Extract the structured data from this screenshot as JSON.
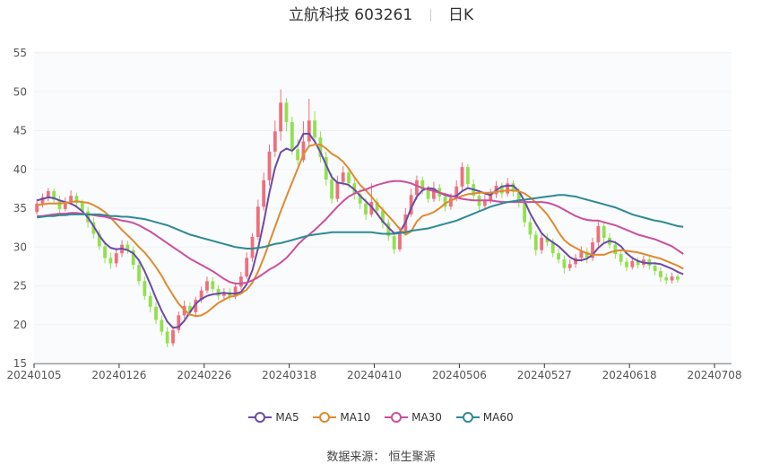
{
  "header": {
    "stock_title": "立航科技 603261",
    "period": "日K"
  },
  "source_label": "数据来源：",
  "source_value": "恒生聚源",
  "colors": {
    "up": "#ee6f7c",
    "down": "#91e04f",
    "MA5": "#6b4aa8",
    "MA10": "#e08a2e",
    "MA30": "#cc4f9a",
    "MA60": "#2f8a93"
  },
  "chart_data": {
    "type": "candlestick",
    "ylim": [
      15,
      55
    ],
    "yticks": [
      15,
      20,
      25,
      30,
      35,
      40,
      45,
      50,
      55
    ],
    "xlim": [
      0,
      123
    ],
    "x_tick_labels": [
      "20240105",
      "20240126",
      "20240226",
      "20240318",
      "20240410",
      "20240506",
      "20240527",
      "20240618",
      "20240708"
    ],
    "x_tick_index": [
      0,
      15,
      30,
      45,
      60,
      75,
      90,
      105,
      120
    ],
    "candles": [
      [
        34.5,
        35.6,
        36.2,
        34.2
      ],
      [
        35.6,
        36.4,
        36.9,
        35.1
      ],
      [
        36.4,
        37.2,
        37.6,
        35.9
      ],
      [
        37.2,
        36.1,
        37.5,
        35.6
      ],
      [
        36.1,
        34.9,
        36.6,
        34.4
      ],
      [
        34.9,
        35.8,
        36.4,
        34.6
      ],
      [
        35.8,
        36.6,
        37.3,
        35.4
      ],
      [
        36.6,
        35.7,
        37.0,
        35.2
      ],
      [
        35.7,
        34.6,
        36.1,
        34.1
      ],
      [
        34.6,
        33.2,
        35.2,
        32.5
      ],
      [
        33.2,
        31.7,
        33.8,
        31.1
      ],
      [
        31.7,
        30.1,
        32.2,
        29.6
      ],
      [
        30.1,
        28.6,
        30.7,
        27.9
      ],
      [
        28.6,
        27.9,
        29.3,
        27.2
      ],
      [
        27.9,
        29.2,
        29.9,
        27.4
      ],
      [
        29.2,
        30.3,
        30.9,
        28.7
      ],
      [
        30.3,
        29.6,
        30.8,
        29.1
      ],
      [
        29.6,
        27.7,
        30.1,
        27.1
      ],
      [
        27.7,
        25.6,
        28.1,
        25.1
      ],
      [
        25.6,
        23.7,
        26.2,
        23.2
      ],
      [
        23.7,
        22.3,
        24.2,
        21.6
      ],
      [
        22.3,
        20.6,
        22.9,
        20.1
      ],
      [
        20.6,
        19.1,
        21.2,
        18.6
      ],
      [
        19.1,
        17.6,
        19.7,
        17.1
      ],
      [
        17.6,
        19.3,
        19.8,
        17.2
      ],
      [
        19.3,
        21.2,
        21.7,
        18.9
      ],
      [
        21.2,
        22.4,
        23.1,
        20.8
      ],
      [
        22.4,
        21.6,
        22.9,
        21.1
      ],
      [
        21.6,
        23.2,
        23.6,
        21.2
      ],
      [
        23.2,
        24.4,
        24.9,
        22.8
      ],
      [
        24.4,
        25.6,
        26.2,
        24.0
      ],
      [
        25.6,
        24.6,
        26.1,
        24.1
      ],
      [
        24.6,
        23.7,
        25.1,
        23.2
      ],
      [
        23.7,
        24.2,
        24.7,
        23.1
      ],
      [
        24.2,
        23.6,
        24.7,
        23.1
      ],
      [
        23.6,
        24.9,
        25.4,
        23.3
      ],
      [
        24.9,
        26.2,
        26.8,
        24.5
      ],
      [
        26.2,
        28.6,
        29.3,
        25.9
      ],
      [
        28.6,
        31.3,
        31.8,
        28.1
      ],
      [
        31.3,
        35.2,
        36.1,
        30.9
      ],
      [
        35.2,
        38.6,
        39.6,
        34.7
      ],
      [
        38.6,
        42.3,
        43.2,
        37.9
      ],
      [
        42.3,
        44.9,
        46.3,
        41.6
      ],
      [
        44.9,
        48.6,
        50.3,
        43.7
      ],
      [
        48.6,
        46.1,
        49.2,
        44.9
      ],
      [
        46.1,
        42.6,
        46.8,
        41.9
      ],
      [
        42.6,
        41.2,
        43.9,
        40.6
      ],
      [
        41.2,
        43.6,
        46.2,
        40.9
      ],
      [
        43.6,
        46.3,
        49.1,
        42.8
      ],
      [
        46.3,
        44.1,
        47.5,
        43.3
      ],
      [
        44.1,
        41.6,
        44.9,
        40.9
      ],
      [
        41.6,
        38.7,
        42.3,
        37.9
      ],
      [
        38.7,
        36.2,
        39.5,
        35.6
      ],
      [
        36.2,
        38.4,
        39.2,
        35.8
      ],
      [
        38.4,
        39.6,
        40.4,
        37.9
      ],
      [
        39.6,
        38.2,
        40.2,
        37.6
      ],
      [
        38.2,
        36.8,
        38.9,
        36.1
      ],
      [
        36.8,
        35.6,
        37.5,
        34.9
      ],
      [
        35.6,
        34.2,
        36.3,
        33.5
      ],
      [
        34.2,
        35.8,
        38.2,
        33.9
      ],
      [
        35.8,
        34.7,
        36.3,
        34.1
      ],
      [
        34.7,
        33.1,
        35.2,
        32.4
      ],
      [
        33.1,
        31.4,
        33.6,
        30.8
      ],
      [
        31.4,
        29.7,
        31.9,
        29.1
      ],
      [
        29.7,
        31.8,
        32.6,
        29.4
      ],
      [
        31.8,
        34.2,
        35.0,
        31.5
      ],
      [
        34.2,
        36.7,
        37.5,
        33.9
      ],
      [
        36.7,
        38.6,
        39.2,
        36.1
      ],
      [
        38.6,
        37.4,
        39.1,
        36.8
      ],
      [
        37.4,
        36.2,
        37.9,
        35.7
      ],
      [
        36.2,
        37.6,
        38.4,
        35.8
      ],
      [
        37.6,
        36.5,
        38.1,
        35.9
      ],
      [
        36.5,
        35.2,
        37.0,
        34.6
      ],
      [
        35.2,
        36.3,
        36.9,
        34.8
      ],
      [
        36.3,
        37.8,
        38.6,
        35.9
      ],
      [
        37.8,
        40.3,
        40.9,
        37.3
      ],
      [
        40.3,
        38.1,
        40.7,
        37.6
      ],
      [
        38.1,
        36.6,
        38.7,
        36.0
      ],
      [
        36.6,
        35.3,
        37.2,
        34.7
      ],
      [
        35.3,
        36.1,
        36.7,
        34.8
      ],
      [
        36.1,
        36.8,
        37.5,
        35.6
      ],
      [
        36.8,
        37.9,
        38.5,
        36.3
      ],
      [
        37.9,
        36.9,
        38.3,
        36.3
      ],
      [
        36.9,
        38.2,
        38.9,
        36.5
      ],
      [
        38.2,
        37.1,
        38.6,
        36.5
      ],
      [
        37.1,
        35.7,
        37.6,
        35.1
      ],
      [
        35.7,
        33.2,
        36.1,
        32.6
      ],
      [
        33.2,
        31.6,
        33.8,
        31.0
      ],
      [
        31.6,
        29.6,
        32.1,
        28.9
      ],
      [
        29.6,
        31.2,
        31.9,
        29.1
      ],
      [
        31.2,
        30.6,
        31.8,
        30.1
      ],
      [
        30.6,
        29.2,
        31.1,
        28.7
      ],
      [
        29.2,
        28.4,
        29.8,
        27.9
      ],
      [
        28.4,
        27.3,
        28.9,
        26.6
      ],
      [
        27.3,
        27.8,
        28.4,
        26.9
      ],
      [
        27.8,
        28.6,
        29.1,
        27.3
      ],
      [
        28.6,
        29.4,
        30.1,
        28.1
      ],
      [
        29.4,
        28.6,
        29.9,
        27.9
      ],
      [
        28.6,
        30.6,
        31.2,
        28.2
      ],
      [
        30.6,
        32.7,
        33.3,
        30.1
      ],
      [
        32.7,
        31.2,
        33.1,
        30.6
      ],
      [
        31.2,
        30.3,
        31.8,
        29.8
      ],
      [
        30.3,
        29.1,
        30.8,
        28.5
      ],
      [
        29.1,
        28.1,
        29.6,
        27.6
      ],
      [
        28.1,
        27.4,
        28.6,
        26.9
      ],
      [
        27.4,
        28.2,
        28.8,
        27.1
      ],
      [
        28.2,
        27.7,
        28.7,
        27.2
      ],
      [
        27.7,
        28.4,
        28.9,
        27.3
      ],
      [
        28.4,
        27.6,
        28.9,
        27.1
      ],
      [
        27.6,
        26.9,
        28.1,
        26.4
      ],
      [
        26.9,
        26.1,
        27.4,
        25.5
      ],
      [
        26.1,
        25.7,
        26.6,
        25.2
      ],
      [
        25.7,
        26.2,
        26.7,
        25.3
      ],
      [
        26.2,
        25.8,
        26.5,
        25.4
      ]
    ],
    "series": [
      {
        "name": "MA5",
        "values": [
          36.0,
          36.2,
          36.4,
          36.3,
          36.0,
          35.8,
          35.6,
          35.2,
          34.6,
          33.8,
          32.7,
          31.5,
          30.5,
          29.9,
          29.7,
          29.8,
          29.6,
          29.2,
          28.3,
          26.9,
          25.2,
          23.4,
          21.8,
          20.4,
          19.6,
          19.7,
          20.5,
          21.6,
          22.7,
          23.3,
          23.7,
          23.9,
          24.0,
          24.1,
          24.0,
          24.0,
          24.2,
          25.2,
          27.0,
          29.8,
          33.2,
          37.0,
          40.2,
          42.2,
          42.7,
          42.4,
          43.1,
          44.6,
          44.6,
          43.6,
          42.2,
          40.6,
          39.0,
          38.3,
          38.2,
          38.0,
          37.4,
          36.6,
          35.9,
          35.2,
          34.3,
          33.3,
          32.5,
          31.8,
          31.9,
          33.2,
          35.0,
          36.5,
          37.3,
          37.6,
          37.5,
          37.0,
          36.7,
          36.5,
          36.6,
          37.2,
          37.6,
          37.4,
          37.2,
          36.9,
          36.7,
          37.3,
          37.8,
          37.9,
          37.9,
          37.2,
          35.9,
          34.3,
          33.0,
          31.8,
          31.1,
          30.6,
          30.1,
          29.4,
          28.7,
          28.3,
          28.3,
          28.5,
          29.0,
          29.9,
          30.5,
          30.8,
          30.6,
          30.1,
          29.2,
          28.6,
          28.2,
          28.0,
          27.9,
          27.9,
          27.8,
          27.5,
          27.2,
          26.8,
          26.5
        ]
      },
      {
        "name": "MA10",
        "values": [
          35.4,
          35.5,
          35.6,
          35.6,
          35.6,
          35.7,
          35.8,
          35.9,
          35.8,
          35.7,
          35.4,
          35.0,
          34.5,
          33.8,
          33.0,
          32.2,
          31.5,
          30.8,
          30.0,
          29.3,
          28.4,
          27.4,
          26.3,
          25.0,
          23.8,
          22.7,
          21.9,
          21.3,
          21.1,
          21.2,
          21.6,
          22.2,
          22.8,
          23.2,
          23.6,
          23.7,
          24.0,
          24.5,
          25.4,
          26.8,
          28.6,
          30.6,
          32.6,
          34.6,
          36.5,
          38.3,
          40.1,
          41.9,
          43.0,
          43.2,
          43.2,
          42.7,
          42.0,
          41.6,
          41.0,
          40.1,
          39.0,
          38.0,
          37.3,
          36.5,
          35.6,
          34.8,
          34.0,
          33.2,
          32.3,
          31.6,
          32.0,
          33.3,
          34.0,
          34.2,
          34.5,
          35.0,
          35.6,
          36.0,
          36.3,
          36.6,
          36.8,
          36.9,
          37.0,
          37.0,
          37.0,
          37.1,
          37.2,
          37.3,
          37.3,
          37.2,
          36.9,
          36.4,
          35.7,
          35.0,
          34.2,
          33.1,
          31.9,
          30.9,
          30.3,
          29.9,
          29.5,
          29.2,
          29.0,
          29.0,
          29.0,
          29.3,
          29.5,
          29.6,
          29.5,
          29.4,
          29.3,
          29.1,
          28.9,
          28.7,
          28.5,
          28.2,
          27.9,
          27.6,
          27.2
        ]
      },
      {
        "name": "MA30",
        "values": [
          34.0,
          34.0,
          34.1,
          34.2,
          34.3,
          34.3,
          34.4,
          34.4,
          34.3,
          34.2,
          34.1,
          34.0,
          33.9,
          33.7,
          33.6,
          33.4,
          33.3,
          33.1,
          32.8,
          32.4,
          32.0,
          31.5,
          31.0,
          30.5,
          30.0,
          29.5,
          29.0,
          28.5,
          28.1,
          27.7,
          27.3,
          26.9,
          26.4,
          25.9,
          25.5,
          25.3,
          25.3,
          25.4,
          25.7,
          26.1,
          26.6,
          27.1,
          27.5,
          28.0,
          28.6,
          29.4,
          30.3,
          31.0,
          31.6,
          32.2,
          32.9,
          33.6,
          34.4,
          35.2,
          35.9,
          36.5,
          36.9,
          37.2,
          37.4,
          37.7,
          38.0,
          38.2,
          38.4,
          38.5,
          38.5,
          38.4,
          38.2,
          37.9,
          37.6,
          37.4,
          37.2,
          37.0,
          36.8,
          36.6,
          36.4,
          36.2,
          36.1,
          36.0,
          36.0,
          36.0,
          36.0,
          35.9,
          35.8,
          35.8,
          35.8,
          35.8,
          35.8,
          35.8,
          35.8,
          35.8,
          35.7,
          35.5,
          35.2,
          34.8,
          34.4,
          34.0,
          33.7,
          33.5,
          33.4,
          33.4,
          33.2,
          33.0,
          32.8,
          32.5,
          32.2,
          31.9,
          31.6,
          31.4,
          31.2,
          31.0,
          30.7,
          30.4,
          30.1,
          29.6,
          29.1
        ]
      },
      {
        "name": "MA60",
        "values": [
          33.8,
          33.9,
          34.0,
          34.0,
          34.1,
          34.1,
          34.2,
          34.2,
          34.2,
          34.2,
          34.2,
          34.2,
          34.1,
          34.0,
          34.0,
          33.9,
          33.9,
          33.8,
          33.7,
          33.6,
          33.4,
          33.2,
          33.0,
          32.8,
          32.5,
          32.2,
          31.9,
          31.6,
          31.4,
          31.2,
          31.0,
          30.8,
          30.6,
          30.4,
          30.2,
          30.0,
          29.9,
          29.8,
          29.8,
          29.9,
          30.0,
          30.2,
          30.4,
          30.5,
          30.7,
          30.9,
          31.1,
          31.3,
          31.5,
          31.6,
          31.7,
          31.8,
          31.9,
          31.9,
          31.9,
          31.9,
          31.9,
          31.9,
          31.9,
          31.9,
          31.8,
          31.7,
          31.7,
          31.7,
          31.8,
          31.9,
          32.1,
          32.2,
          32.3,
          32.4,
          32.6,
          32.8,
          33.0,
          33.2,
          33.4,
          33.7,
          34.0,
          34.3,
          34.6,
          34.9,
          35.2,
          35.4,
          35.6,
          35.8,
          35.9,
          36.0,
          36.1,
          36.2,
          36.3,
          36.4,
          36.5,
          36.6,
          36.7,
          36.7,
          36.6,
          36.5,
          36.3,
          36.1,
          35.9,
          35.7,
          35.5,
          35.3,
          35.1,
          34.8,
          34.5,
          34.2,
          34.0,
          33.8,
          33.6,
          33.4,
          33.3,
          33.1,
          32.9,
          32.7,
          32.6
        ]
      }
    ],
    "legend": [
      "MA5",
      "MA10",
      "MA30",
      "MA60"
    ],
    "legend_position": "bottom",
    "grid": true
  }
}
